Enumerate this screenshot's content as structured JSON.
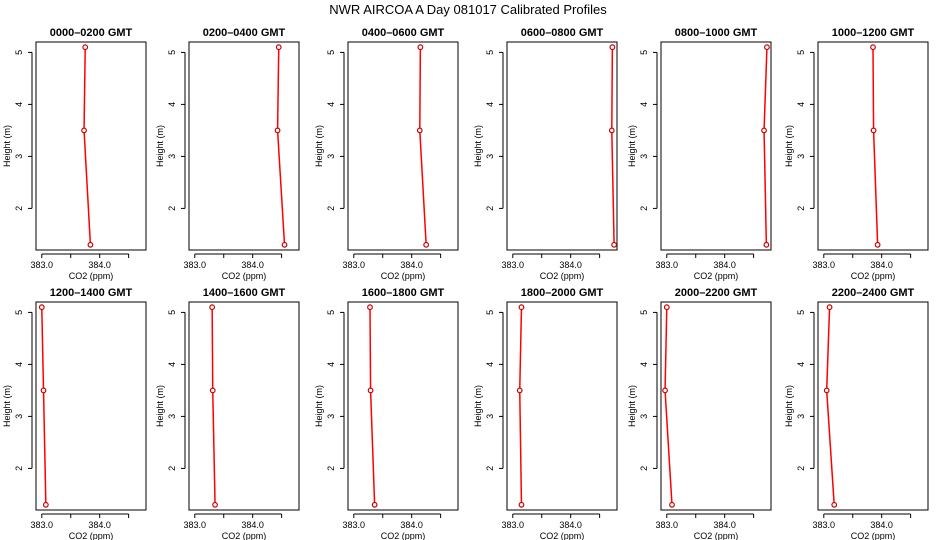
{
  "title": "NWR AIRCOA A  Day 081017  Calibrated Profiles",
  "style": {
    "line_color": "#ff0000",
    "marker_color": "#cc0000"
  },
  "chart_data": [
    {
      "type": "line",
      "title": "0000–0200 GMT",
      "xlabel": "CO2 (ppm)",
      "ylabel": "Height (m)",
      "xlim": [
        382.9,
        384.8
      ],
      "ylim": [
        1.2,
        5.2
      ],
      "xticks": [
        "383.0",
        "384.0"
      ],
      "yticks": [
        "2",
        "3",
        "4",
        "5"
      ],
      "grid": false,
      "series": [
        {
          "x": [
            383.75,
            383.73,
            383.84
          ],
          "y": [
            5.1,
            3.5,
            1.3
          ]
        }
      ]
    },
    {
      "type": "line",
      "title": "0200–0400 GMT",
      "xlabel": "CO2 (ppm)",
      "ylabel": "Height (m)",
      "xlim": [
        382.9,
        384.8
      ],
      "ylim": [
        1.2,
        5.2
      ],
      "xticks": [
        "383.0",
        "384.0"
      ],
      "yticks": [
        "2",
        "3",
        "4",
        "5"
      ],
      "grid": false,
      "series": [
        {
          "x": [
            384.45,
            384.43,
            384.55
          ],
          "y": [
            5.1,
            3.5,
            1.3
          ]
        }
      ]
    },
    {
      "type": "line",
      "title": "0400–0600 GMT",
      "xlabel": "CO2 (ppm)",
      "ylabel": "Height (m)",
      "xlim": [
        382.9,
        384.8
      ],
      "ylim": [
        1.2,
        5.2
      ],
      "xticks": [
        "383.0",
        "384.0"
      ],
      "yticks": [
        "2",
        "3",
        "4",
        "5"
      ],
      "grid": false,
      "series": [
        {
          "x": [
            384.15,
            384.14,
            384.25
          ],
          "y": [
            5.1,
            3.5,
            1.3
          ]
        }
      ]
    },
    {
      "type": "line",
      "title": "0600–0800 GMT",
      "xlabel": "CO2 (ppm)",
      "ylabel": "Height (m)",
      "xlim": [
        382.9,
        384.8
      ],
      "ylim": [
        1.2,
        5.2
      ],
      "xticks": [
        "383.0",
        "384.0"
      ],
      "yticks": [
        "2",
        "3",
        "4",
        "5"
      ],
      "grid": false,
      "series": [
        {
          "x": [
            384.72,
            384.71,
            384.75
          ],
          "y": [
            5.1,
            3.5,
            1.3
          ]
        }
      ]
    },
    {
      "type": "line",
      "title": "0800–1000 GMT",
      "xlabel": "CO2 (ppm)",
      "ylabel": "Height (m)",
      "xlim": [
        382.9,
        384.8
      ],
      "ylim": [
        1.2,
        5.2
      ],
      "xticks": [
        "383.0",
        "384.0"
      ],
      "yticks": [
        "2",
        "3",
        "4",
        "5"
      ],
      "grid": false,
      "series": [
        {
          "x": [
            384.73,
            384.68,
            384.72
          ],
          "y": [
            5.1,
            3.5,
            1.3
          ]
        }
      ]
    },
    {
      "type": "line",
      "title": "1000–1200 GMT",
      "xlabel": "CO2 (ppm)",
      "ylabel": "Height (m)",
      "xlim": [
        382.9,
        384.8
      ],
      "ylim": [
        1.2,
        5.2
      ],
      "xticks": [
        "383.0",
        "384.0"
      ],
      "yticks": [
        "2",
        "3",
        "4",
        "5"
      ],
      "grid": false,
      "series": [
        {
          "x": [
            383.85,
            383.86,
            383.93
          ],
          "y": [
            5.1,
            3.5,
            1.3
          ]
        }
      ]
    },
    {
      "type": "line",
      "title": "1200–1400 GMT",
      "xlabel": "CO2 (ppm)",
      "ylabel": "Height (m)",
      "xlim": [
        382.9,
        384.8
      ],
      "ylim": [
        1.2,
        5.2
      ],
      "xticks": [
        "383.0",
        "384.0"
      ],
      "yticks": [
        "2",
        "3",
        "4",
        "5"
      ],
      "grid": false,
      "series": [
        {
          "x": [
            383.0,
            383.03,
            383.07
          ],
          "y": [
            5.1,
            3.5,
            1.3
          ]
        }
      ]
    },
    {
      "type": "line",
      "title": "1400–1600 GMT",
      "xlabel": "CO2 (ppm)",
      "ylabel": "Height (m)",
      "xlim": [
        382.9,
        384.8
      ],
      "ylim": [
        1.2,
        5.2
      ],
      "xticks": [
        "383.0",
        "384.0"
      ],
      "yticks": [
        "2",
        "3",
        "4",
        "5"
      ],
      "grid": false,
      "series": [
        {
          "x": [
            383.3,
            383.31,
            383.35
          ],
          "y": [
            5.1,
            3.5,
            1.3
          ]
        }
      ]
    },
    {
      "type": "line",
      "title": "1600–1800 GMT",
      "xlabel": "CO2 (ppm)",
      "ylabel": "Height (m)",
      "xlim": [
        382.9,
        384.8
      ],
      "ylim": [
        1.2,
        5.2
      ],
      "xticks": [
        "383.0",
        "384.0"
      ],
      "yticks": [
        "2",
        "3",
        "4",
        "5"
      ],
      "grid": false,
      "series": [
        {
          "x": [
            383.28,
            383.29,
            383.36
          ],
          "y": [
            5.1,
            3.5,
            1.3
          ]
        }
      ]
    },
    {
      "type": "line",
      "title": "1800–2000 GMT",
      "xlabel": "CO2 (ppm)",
      "ylabel": "Height (m)",
      "xlim": [
        382.9,
        384.8
      ],
      "ylim": [
        1.2,
        5.2
      ],
      "xticks": [
        "383.0",
        "384.0"
      ],
      "yticks": [
        "2",
        "3",
        "4",
        "5"
      ],
      "grid": false,
      "series": [
        {
          "x": [
            383.15,
            383.12,
            383.15
          ],
          "y": [
            5.1,
            3.5,
            1.3
          ]
        }
      ]
    },
    {
      "type": "line",
      "title": "2000–2200 GMT",
      "xlabel": "CO2 (ppm)",
      "ylabel": "Height (m)",
      "xlim": [
        382.9,
        384.8
      ],
      "ylim": [
        1.2,
        5.2
      ],
      "xticks": [
        "383.0",
        "384.0"
      ],
      "yticks": [
        "2",
        "3",
        "4",
        "5"
      ],
      "grid": false,
      "series": [
        {
          "x": [
            383.0,
            382.97,
            383.09
          ],
          "y": [
            5.1,
            3.5,
            1.3
          ]
        }
      ]
    },
    {
      "type": "line",
      "title": "2200–2400 GMT",
      "xlabel": "CO2 (ppm)",
      "ylabel": "Height (m)",
      "xlim": [
        382.9,
        384.8
      ],
      "ylim": [
        1.2,
        5.2
      ],
      "xticks": [
        "383.0",
        "384.0"
      ],
      "yticks": [
        "2",
        "3",
        "4",
        "5"
      ],
      "grid": false,
      "series": [
        {
          "x": [
            383.1,
            383.05,
            383.18
          ],
          "y": [
            5.1,
            3.5,
            1.3
          ]
        }
      ]
    }
  ]
}
